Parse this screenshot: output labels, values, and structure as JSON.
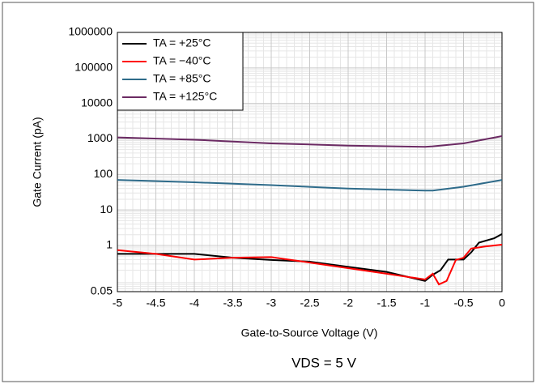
{
  "chart_data": {
    "type": "line",
    "xlabel": "Gate-to-Source Voltage (V)",
    "ylabel": "Gate Current (pA)",
    "annotation": "VDS = 5 V",
    "xlim": [
      -5,
      0
    ],
    "xticks": [
      -5,
      -4.5,
      -4,
      -3.5,
      -3,
      -2.5,
      -2,
      -1.5,
      -1,
      -0.5,
      0
    ],
    "ylim": [
      0.05,
      1000000
    ],
    "yticks": [
      0.05,
      1,
      10,
      100,
      1000,
      10000,
      100000,
      1000000
    ],
    "log_y": true,
    "grid": true,
    "legend": "upper-left",
    "series": [
      {
        "name": "TA = +25°C",
        "color": "#000000",
        "x": [
          -5,
          -4,
          -3.5,
          -3,
          -2.5,
          -2,
          -1.5,
          -1,
          -0.9,
          -0.8,
          -0.7,
          -0.5,
          -0.4,
          -0.3,
          -0.1,
          0
        ],
        "values": [
          0.58,
          0.58,
          0.45,
          0.39,
          0.35,
          0.25,
          0.18,
          0.1,
          0.15,
          0.2,
          0.4,
          0.4,
          0.64,
          1.2,
          1.6,
          2.1
        ]
      },
      {
        "name": "TA = −40°C",
        "color": "#ff0000",
        "x": [
          -5,
          -4.5,
          -4,
          -3.5,
          -3,
          -2.5,
          -2,
          -1.5,
          -1,
          -0.9,
          -0.82,
          -0.72,
          -0.6,
          -0.5,
          -0.4,
          -0.2,
          0
        ],
        "values": [
          0.74,
          0.58,
          0.4,
          0.45,
          0.47,
          0.33,
          0.23,
          0.16,
          0.11,
          0.16,
          0.08,
          0.1,
          0.39,
          0.45,
          0.82,
          0.95,
          1.05
        ]
      },
      {
        "name": "TA = +85°C",
        "color": "#2e6b8a",
        "x": [
          -5,
          -4,
          -3,
          -2,
          -1,
          -0.9,
          -0.5,
          0
        ],
        "values": [
          70,
          60,
          50,
          40,
          35,
          35,
          45,
          70
        ]
      },
      {
        "name": "TA = +125°C",
        "color": "#6b2a63",
        "x": [
          -5,
          -4,
          -3,
          -2,
          -1,
          -0.9,
          -0.5,
          0
        ],
        "values": [
          1100,
          950,
          750,
          650,
          600,
          620,
          750,
          1200
        ]
      }
    ]
  }
}
